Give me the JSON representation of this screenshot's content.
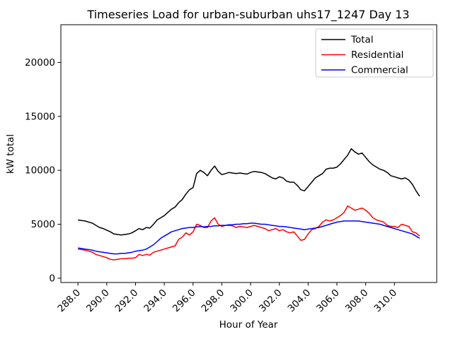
{
  "figure": {
    "title": "Timeseries Load for urban-suburban uhs17_1247  Day 13",
    "xlabel": "Hour of Year",
    "ylabel": "kW total"
  },
  "legend": {
    "position": "upper right",
    "entries": [
      {
        "label": "Total",
        "color": "#000000"
      },
      {
        "label": "Residential",
        "color": "#ff0000"
      },
      {
        "label": "Commercial",
        "color": "#0000ff"
      }
    ]
  },
  "chart_data": {
    "type": "line",
    "title": "Timeseries Load for urban-suburban uhs17_1247  Day 13",
    "xlabel": "Hour of Year",
    "ylabel": "kW total",
    "grid": false,
    "legend_position": "upper right",
    "xlim": [
      286.81,
      312.94
    ],
    "ylim": [
      -400,
      23500
    ],
    "x_ticks": [
      288,
      290,
      292,
      294,
      296,
      298,
      300,
      302,
      304,
      306,
      308,
      310
    ],
    "x_tick_labels": [
      "288.0",
      "290.0",
      "292.0",
      "294.0",
      "296.0",
      "298.0",
      "300.0",
      "302.0",
      "304.0",
      "306.0",
      "308.0",
      "310.0"
    ],
    "y_ticks": [
      0,
      5000,
      10000,
      15000,
      20000
    ],
    "y_tick_labels": [
      "0",
      "5000",
      "10000",
      "15000",
      "20000"
    ],
    "x": [
      288.0,
      288.25,
      288.5,
      288.75,
      289.0,
      289.25,
      289.5,
      289.75,
      290.0,
      290.25,
      290.5,
      290.75,
      291.0,
      291.25,
      291.5,
      291.75,
      292.0,
      292.25,
      292.5,
      292.75,
      293.0,
      293.25,
      293.5,
      293.75,
      294.0,
      294.25,
      294.5,
      294.75,
      295.0,
      295.25,
      295.5,
      295.75,
      296.0,
      296.25,
      296.5,
      296.75,
      297.0,
      297.25,
      297.5,
      297.75,
      298.0,
      298.25,
      298.5,
      298.75,
      299.0,
      299.25,
      299.5,
      299.75,
      300.0,
      300.25,
      300.5,
      300.75,
      301.0,
      301.25,
      301.5,
      301.75,
      302.0,
      302.25,
      302.5,
      302.75,
      303.0,
      303.25,
      303.5,
      303.75,
      304.0,
      304.25,
      304.5,
      304.75,
      305.0,
      305.25,
      305.5,
      305.75,
      306.0,
      306.25,
      306.5,
      306.75,
      307.0,
      307.25,
      307.5,
      307.75,
      308.0,
      308.25,
      308.5,
      308.75,
      309.0,
      309.25,
      309.5,
      309.75,
      310.0,
      310.25,
      310.5,
      310.75,
      311.0,
      311.25,
      311.5,
      311.75
    ],
    "series": [
      {
        "name": "Total",
        "color": "#000000",
        "values": [
          5400,
          5350,
          5300,
          5200,
          5100,
          4900,
          4700,
          4600,
          4450,
          4300,
          4100,
          4050,
          4000,
          4050,
          4100,
          4200,
          4400,
          4600,
          4500,
          4700,
          4650,
          5000,
          5400,
          5600,
          5800,
          6100,
          6400,
          6600,
          7000,
          7300,
          7800,
          8200,
          8400,
          9700,
          10000,
          9800,
          9500,
          10000,
          10400,
          9900,
          9600,
          9700,
          9800,
          9750,
          9700,
          9750,
          9700,
          9650,
          9800,
          9900,
          9850,
          9800,
          9700,
          9500,
          9300,
          9200,
          9400,
          9300,
          9000,
          8900,
          8900,
          8600,
          8200,
          8100,
          8500,
          8900,
          9300,
          9500,
          9700,
          10100,
          10200,
          10200,
          10300,
          10600,
          11000,
          11400,
          12000,
          11700,
          11500,
          11600,
          11200,
          10800,
          10500,
          10300,
          10100,
          10000,
          9800,
          9500,
          9400,
          9300,
          9200,
          9300,
          9100,
          8700,
          8100,
          7600
        ]
      },
      {
        "name": "Residential",
        "color": "#ff0000",
        "values": [
          2700,
          2650,
          2600,
          2500,
          2400,
          2200,
          2100,
          2000,
          1900,
          1750,
          1700,
          1750,
          1800,
          1800,
          1850,
          1850,
          1900,
          2200,
          2100,
          2200,
          2150,
          2400,
          2500,
          2600,
          2700,
          2800,
          2900,
          3000,
          3600,
          3800,
          4200,
          4000,
          4300,
          5000,
          4900,
          4700,
          4700,
          5300,
          5600,
          5000,
          4800,
          4900,
          4900,
          4850,
          4700,
          4800,
          4750,
          4700,
          4800,
          4900,
          4800,
          4700,
          4600,
          4400,
          4500,
          4600,
          4400,
          4500,
          4300,
          4200,
          4300,
          3900,
          3500,
          3600,
          4100,
          4500,
          4600,
          4800,
          5200,
          5400,
          5300,
          5400,
          5600,
          5800,
          6100,
          6700,
          6500,
          6300,
          6400,
          6500,
          6300,
          6000,
          5600,
          5400,
          5300,
          5200,
          4900,
          4800,
          4800,
          4700,
          5000,
          4900,
          4800,
          4300,
          4200,
          3900
        ]
      },
      {
        "name": "Commercial",
        "color": "#0000ff",
        "values": [
          2800,
          2750,
          2700,
          2650,
          2600,
          2500,
          2450,
          2400,
          2350,
          2300,
          2250,
          2250,
          2300,
          2300,
          2350,
          2400,
          2500,
          2550,
          2600,
          2700,
          2900,
          3100,
          3400,
          3700,
          3900,
          4100,
          4300,
          4400,
          4500,
          4600,
          4650,
          4700,
          4700,
          4750,
          4800,
          4750,
          4800,
          4800,
          4850,
          4850,
          4900,
          4900,
          4950,
          4950,
          5000,
          5000,
          5050,
          5050,
          5100,
          5100,
          5050,
          5000,
          5000,
          4950,
          4900,
          4850,
          4800,
          4800,
          4750,
          4700,
          4650,
          4600,
          4550,
          4500,
          4550,
          4600,
          4650,
          4700,
          4800,
          4900,
          5000,
          5100,
          5200,
          5250,
          5300,
          5300,
          5300,
          5300,
          5300,
          5250,
          5200,
          5150,
          5100,
          5050,
          5000,
          4900,
          4800,
          4700,
          4600,
          4500,
          4400,
          4300,
          4200,
          4100,
          3900,
          3700
        ]
      }
    ]
  }
}
